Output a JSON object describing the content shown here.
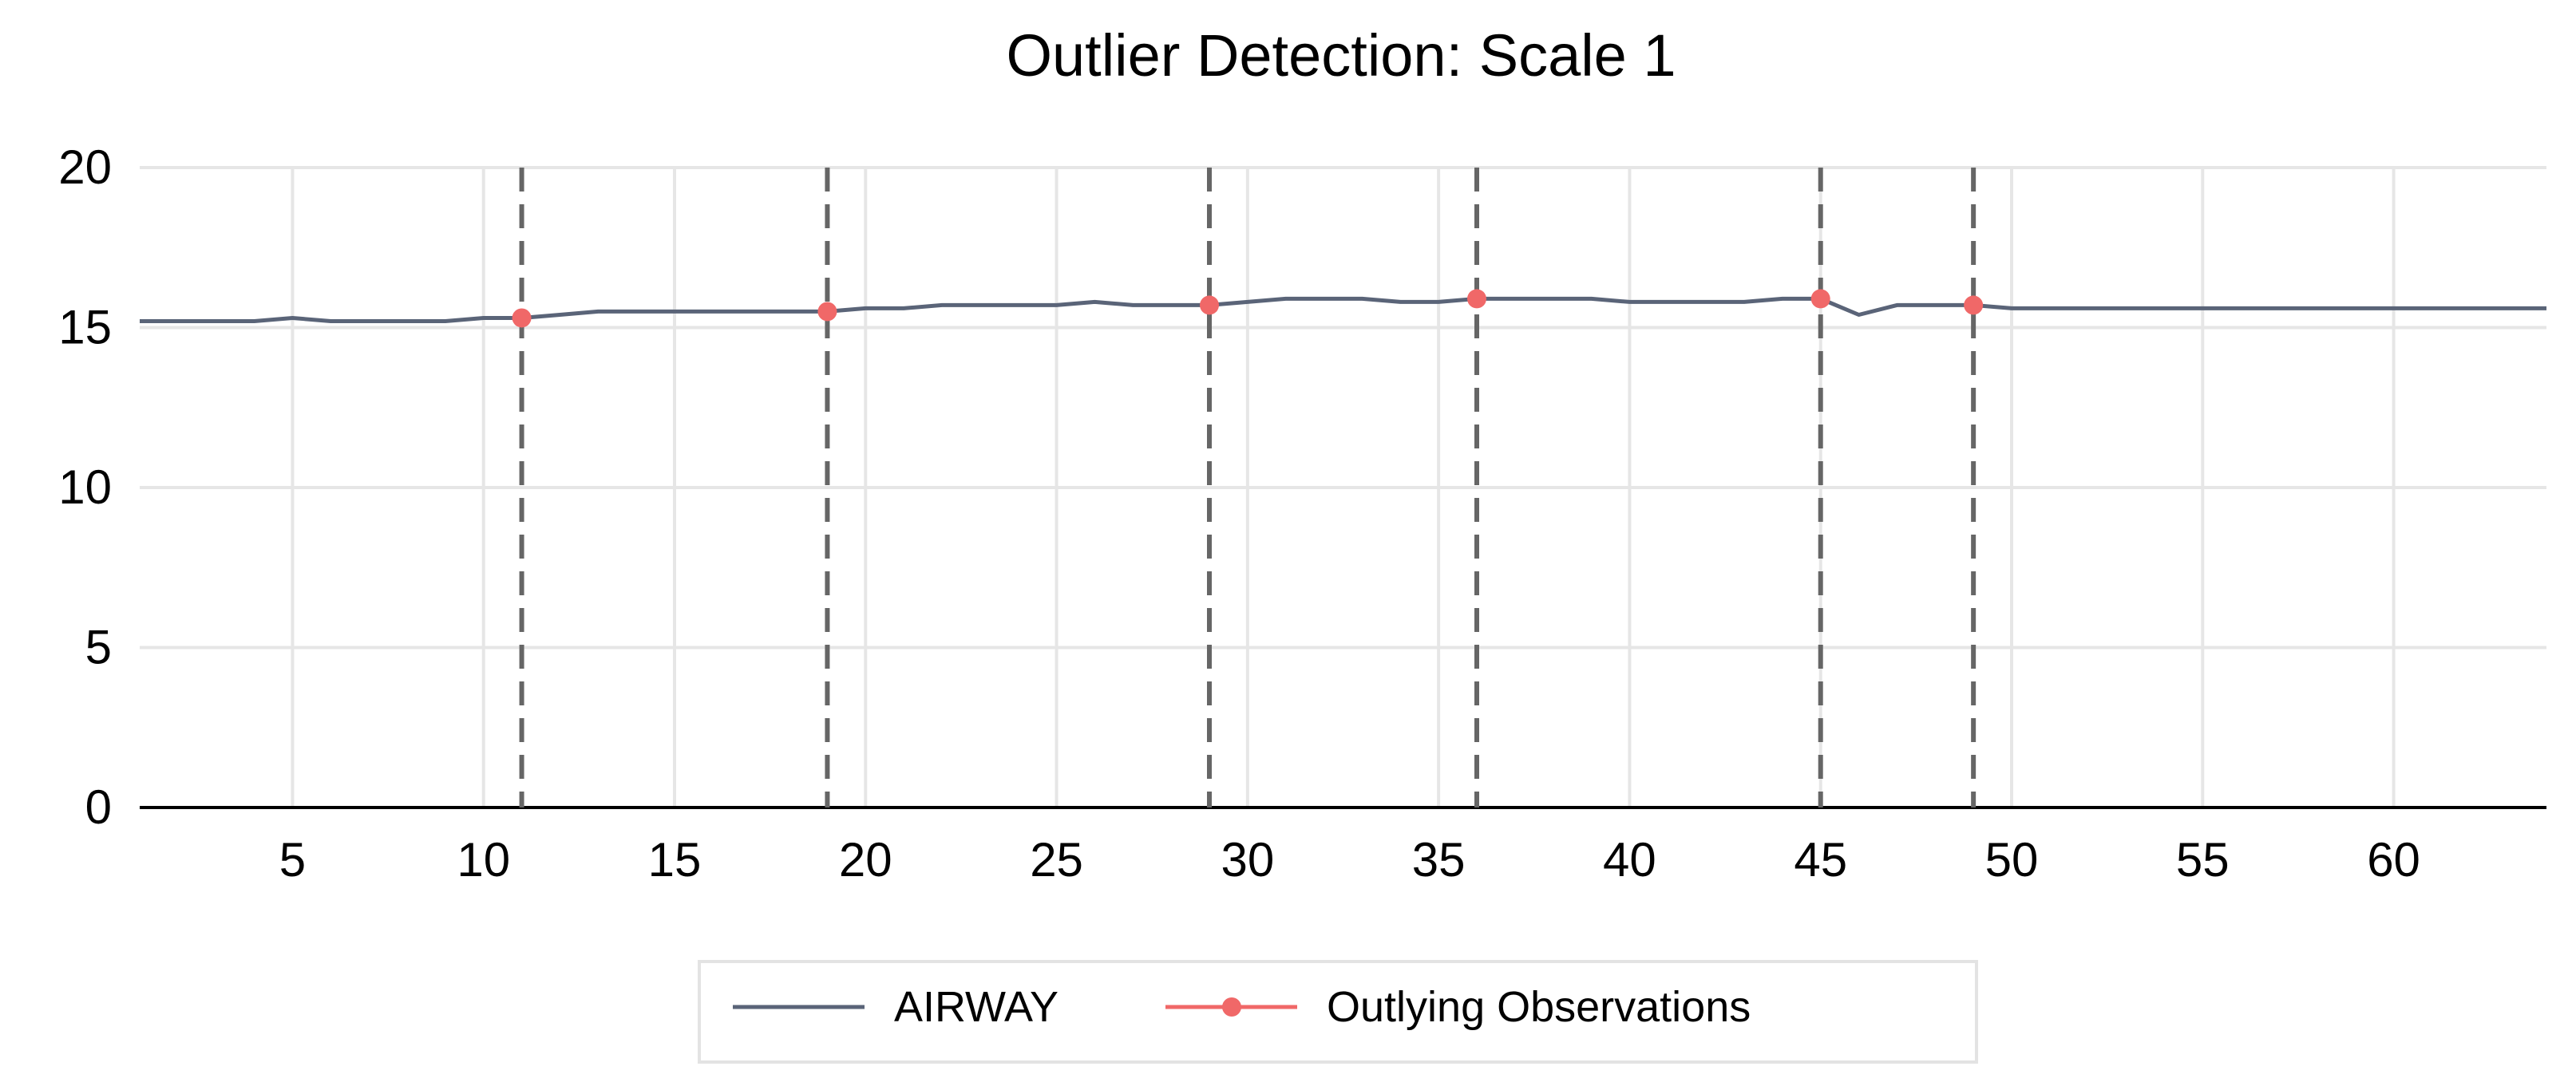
{
  "chart_data": {
    "type": "line",
    "title": "Outlier Detection: Scale 1",
    "xlabel": "",
    "ylabel": "",
    "xlim": [
      1,
      64
    ],
    "ylim": [
      0,
      20
    ],
    "x_ticks": [
      5,
      10,
      15,
      20,
      25,
      30,
      35,
      40,
      45,
      50,
      55,
      60
    ],
    "y_ticks": [
      0,
      5,
      10,
      15,
      20
    ],
    "grid": true,
    "legend_position": "bottom",
    "series": [
      {
        "name": "AIRWAY",
        "color": "#5a6478",
        "x": [
          1,
          2,
          3,
          4,
          5,
          6,
          7,
          8,
          9,
          10,
          11,
          12,
          13,
          14,
          15,
          16,
          17,
          18,
          19,
          20,
          21,
          22,
          23,
          24,
          25,
          26,
          27,
          28,
          29,
          30,
          31,
          32,
          33,
          34,
          35,
          36,
          37,
          38,
          39,
          40,
          41,
          42,
          43,
          44,
          45,
          46,
          47,
          48,
          49,
          50,
          51,
          52,
          53,
          54,
          55,
          56,
          57,
          58,
          59,
          60,
          61,
          62,
          63,
          64
        ],
        "y": [
          15.2,
          15.2,
          15.2,
          15.2,
          15.3,
          15.2,
          15.2,
          15.2,
          15.2,
          15.3,
          15.3,
          15.4,
          15.5,
          15.5,
          15.5,
          15.5,
          15.5,
          15.5,
          15.5,
          15.6,
          15.6,
          15.7,
          15.7,
          15.7,
          15.7,
          15.8,
          15.7,
          15.7,
          15.7,
          15.8,
          15.9,
          15.9,
          15.9,
          15.8,
          15.8,
          15.9,
          15.9,
          15.9,
          15.9,
          15.8,
          15.8,
          15.8,
          15.8,
          15.9,
          15.9,
          15.4,
          15.7,
          15.7,
          15.7,
          15.6,
          15.6,
          15.6,
          15.6,
          15.6,
          15.6,
          15.6,
          15.6,
          15.6,
          15.6,
          15.6,
          15.6,
          15.6,
          15.6,
          15.6
        ]
      },
      {
        "name": "Outlying Observations",
        "color": "#f06868",
        "x": [
          11,
          19,
          29,
          36,
          45,
          49
        ],
        "y": [
          15.3,
          15.5,
          15.7,
          15.9,
          15.9,
          15.7
        ]
      }
    ],
    "outlier_markers": [
      11,
      19,
      29,
      36,
      45,
      49
    ],
    "colors": {
      "grid": "#e6e6e6",
      "axis": "#000000",
      "marker_line": "#666666"
    }
  }
}
